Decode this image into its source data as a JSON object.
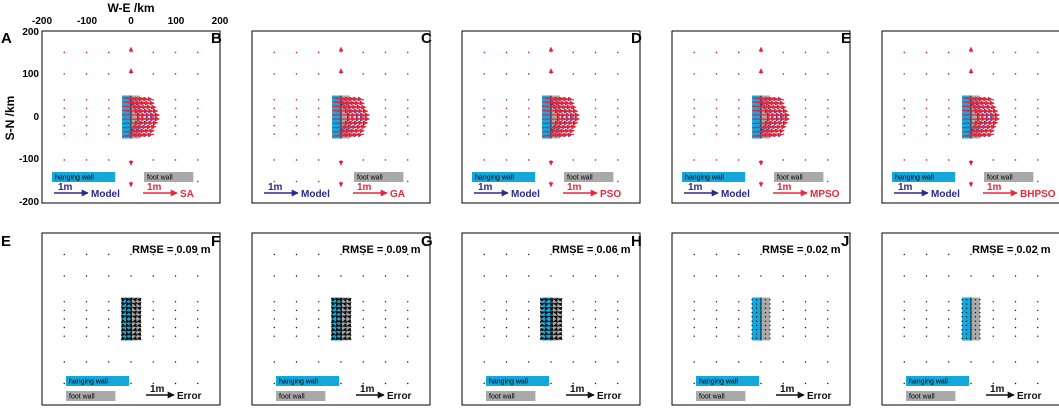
{
  "figure": {
    "xlabel": "W-E /km",
    "ylabel": "S-N /km",
    "x_ticks": [
      "-200",
      "-100",
      "0",
      "100",
      "200"
    ],
    "y_ticks": [
      "200",
      "100",
      "0",
      "-100",
      "-200"
    ]
  },
  "colors": {
    "model": "#2b2a8a",
    "inverted": "#e8283a",
    "error": "#111111",
    "hanging_wall": "#14a7dc",
    "foot_wall": "#a9a9a9",
    "frame": "#000000"
  },
  "chart_data": {
    "type": "quiver",
    "xlim": [
      -200,
      200
    ],
    "ylim": [
      -200,
      200
    ],
    "fault": {
      "hanging_wall_x": [
        -20,
        0
      ],
      "foot_wall_x": [
        0,
        20
      ],
      "y_range": [
        -50,
        50
      ]
    },
    "top_row": [
      {
        "letter": "A",
        "method": "SA",
        "gain": 1.0,
        "show_axes": true,
        "hanging_wall_label": "hanging wall",
        "foot_wall_label": "foot wall",
        "model_scale_label": "1m",
        "model_label": "Model",
        "method_scale_label": "1m"
      },
      {
        "letter": "B",
        "method": "GA",
        "gain": 1.0,
        "show_axes": false,
        "hanging_wall_label": "",
        "foot_wall_label": "foot wall",
        "model_scale_label": "1m",
        "model_label": "Model",
        "method_scale_label": "1m"
      },
      {
        "letter": "C",
        "method": "PSO",
        "gain": 1.0,
        "show_axes": false,
        "hanging_wall_label": "hanging wall",
        "foot_wall_label": "foot wall",
        "model_scale_label": "1m",
        "model_label": "Model",
        "method_scale_label": "1m"
      },
      {
        "letter": "D",
        "method": "MPSO",
        "gain": 1.0,
        "show_axes": false,
        "hanging_wall_label": "hanging wall",
        "foot_wall_label": "foot wall",
        "model_scale_label": "1m",
        "model_label": "Model",
        "method_scale_label": "1m"
      },
      {
        "letter": "E",
        "method": "BHPSO",
        "gain": 1.0,
        "show_axes": false,
        "hanging_wall_label": "hanging wall",
        "foot_wall_label": "foot wall",
        "model_scale_label": "1m",
        "model_label": "Model",
        "method_scale_label": "1m"
      }
    ],
    "bottom_row": [
      {
        "letter": "E",
        "rmse_label": "RMSE = 0.09 m",
        "rmse": 0.09,
        "hanging_wall_label": "hanging wall",
        "foot_wall_label": "foot wall",
        "scale_label": "1m",
        "error_label": "Error"
      },
      {
        "letter": "F",
        "rmse_label": "RMSE = 0.09 m",
        "rmse": 0.09,
        "hanging_wall_label": "hanging wall",
        "foot_wall_label": "foot wall",
        "scale_label": "1m",
        "error_label": "Error"
      },
      {
        "letter": "G",
        "rmse_label": "RMSE = 0.06 m",
        "rmse": 0.06,
        "hanging_wall_label": "hanging wall",
        "foot_wall_label": "foot wall",
        "scale_label": "1m",
        "error_label": "Error"
      },
      {
        "letter": "H",
        "rmse_label": "RMSE = 0.02 m",
        "rmse": 0.02,
        "hanging_wall_label": "hanging wall",
        "foot_wall_label": "foot wall",
        "scale_label": "1m",
        "error_label": "Error"
      },
      {
        "letter": "J",
        "rmse_label": "RMSE = 0.02 m",
        "rmse": 0.02,
        "hanging_wall_label": "hanging wall",
        "foot_wall_label": "foot wall",
        "scale_label": "1m",
        "error_label": "Error"
      }
    ]
  }
}
